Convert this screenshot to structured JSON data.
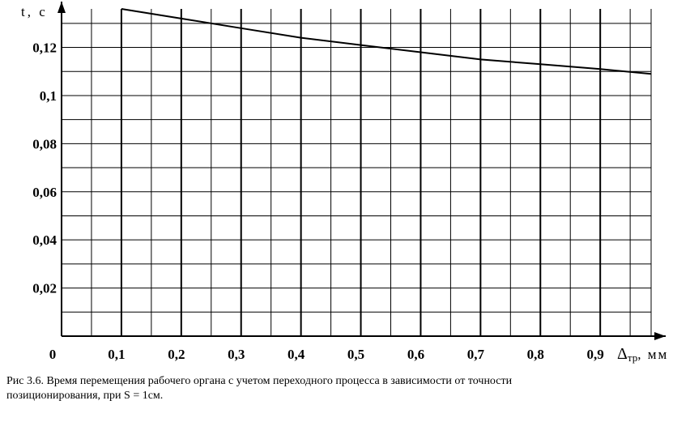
{
  "chart_data": {
    "type": "line",
    "xlabel": "Δ",
    "xlabel_sub": "тр",
    "xunit": ", мм",
    "ylabel": "t, c",
    "origin_label": "0",
    "x_ticks": [
      0.1,
      0.2,
      0.3,
      0.4,
      0.5,
      0.6,
      0.7,
      0.8,
      0.9
    ],
    "x_tick_labels": [
      "0,1",
      "0,2",
      "0,3",
      "0,4",
      "0,5",
      "0,6",
      "0,7",
      "0,8",
      "0,9"
    ],
    "y_ticks": [
      0.02,
      0.04,
      0.06,
      0.08,
      0.1,
      0.12
    ],
    "y_tick_labels": [
      "0,02",
      "0,04",
      "0,06",
      "0,08",
      "0,1",
      "0,12"
    ],
    "xlim": [
      0,
      0.985
    ],
    "ylim": [
      0,
      0.136
    ],
    "grid": true,
    "series": [
      {
        "x": [
          0.1,
          0.2,
          0.3,
          0.4,
          0.5,
          0.6,
          0.7,
          0.8,
          0.9,
          0.985
        ],
        "y": [
          0.136,
          0.132,
          0.128,
          0.124,
          0.121,
          0.118,
          0.115,
          0.113,
          0.111,
          0.109
        ]
      }
    ]
  },
  "caption": {
    "line1": "Рис 3.6.  Время перемещения рабочего органа с учетом переходного процесса в зависимости от точности",
    "line2": "позиционирования, при S = 1см."
  }
}
